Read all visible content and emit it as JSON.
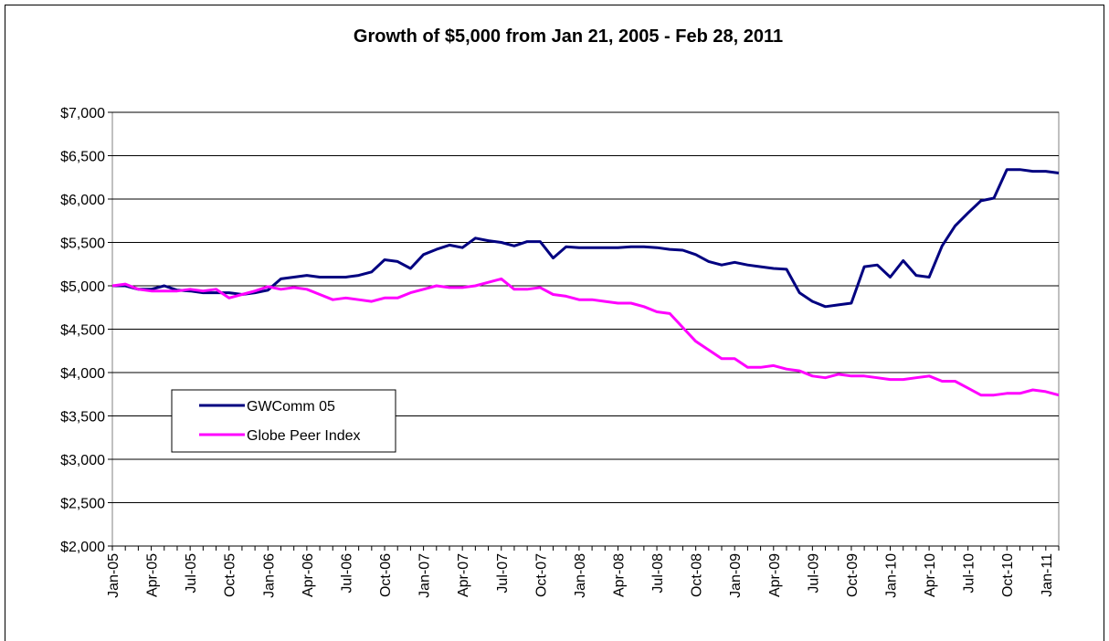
{
  "chart_data": {
    "type": "line",
    "title": "Growth of $5,000 from Jan 21, 2005 - Feb 28, 2011",
    "categories": [
      "Jan-05",
      null,
      null,
      "Apr-05",
      null,
      null,
      "Jul-05",
      null,
      null,
      "Oct-05",
      null,
      null,
      "Jan-06",
      null,
      null,
      "Apr-06",
      null,
      null,
      "Jul-06",
      null,
      null,
      "Oct-06",
      null,
      null,
      "Jan-07",
      null,
      null,
      "Apr-07",
      null,
      null,
      "Jul-07",
      null,
      null,
      "Oct-07",
      null,
      null,
      "Jan-08",
      null,
      null,
      "Apr-08",
      null,
      null,
      "Jul-08",
      null,
      null,
      "Oct-08",
      null,
      null,
      "Jan-09",
      null,
      null,
      "Apr-09",
      null,
      null,
      "Jul-09",
      null,
      null,
      "Oct-09",
      null,
      null,
      "Jan-10",
      null,
      null,
      "Apr-10",
      null,
      null,
      "Jul-10",
      null,
      null,
      "Oct-10",
      null,
      null,
      "Jan-11",
      null
    ],
    "series": [
      {
        "name": "GWComm 05",
        "color": "#000080",
        "values": [
          5000,
          5000,
          4960,
          4960,
          5000,
          4950,
          4940,
          4920,
          4920,
          4920,
          4900,
          4920,
          4950,
          5080,
          5100,
          5120,
          5100,
          5100,
          5100,
          5120,
          5160,
          5300,
          5280,
          5200,
          5360,
          5420,
          5470,
          5440,
          5550,
          5520,
          5500,
          5460,
          5510,
          5510,
          5320,
          5450,
          5440,
          5440,
          5440,
          5440,
          5450,
          5450,
          5440,
          5420,
          5410,
          5360,
          5280,
          5240,
          5270,
          5240,
          5220,
          5200,
          5190,
          4920,
          4820,
          4760,
          4780,
          4800,
          5220,
          5240,
          5100,
          5290,
          5120,
          5100,
          5460,
          5690,
          5840,
          5980,
          6010,
          6340,
          6340,
          6320,
          6320,
          6300
        ]
      },
      {
        "name": "Globe Peer Index",
        "color": "#ff00ff",
        "values": [
          5000,
          5020,
          4960,
          4940,
          4940,
          4940,
          4960,
          4940,
          4960,
          4860,
          4900,
          4940,
          4990,
          4960,
          4980,
          4960,
          4900,
          4840,
          4860,
          4840,
          4820,
          4860,
          4860,
          4920,
          4960,
          5000,
          4980,
          4980,
          5000,
          5040,
          5080,
          4960,
          4960,
          4980,
          4900,
          4880,
          4840,
          4840,
          4820,
          4800,
          4800,
          4760,
          4700,
          4680,
          4520,
          4360,
          4260,
          4160,
          4160,
          4060,
          4060,
          4080,
          4040,
          4020,
          3960,
          3940,
          3980,
          3960,
          3960,
          3940,
          3920,
          3920,
          3940,
          3960,
          3900,
          3900,
          3820,
          3740,
          3740,
          3760,
          3760,
          3800,
          3780,
          3740
        ]
      }
    ],
    "ylim": [
      2000,
      7000
    ],
    "yticks": [
      {
        "value": 2000,
        "label": "$2,000"
      },
      {
        "value": 2500,
        "label": "$2,500"
      },
      {
        "value": 3000,
        "label": "$3,000"
      },
      {
        "value": 3500,
        "label": "$3,500"
      },
      {
        "value": 4000,
        "label": "$4,000"
      },
      {
        "value": 4500,
        "label": "$4,500"
      },
      {
        "value": 5000,
        "label": "$5,000"
      },
      {
        "value": 5500,
        "label": "$5,500"
      },
      {
        "value": 6000,
        "label": "$6,000"
      },
      {
        "value": 6500,
        "label": "$6,500"
      },
      {
        "value": 7000,
        "label": "$7,000"
      }
    ],
    "grid": true
  }
}
